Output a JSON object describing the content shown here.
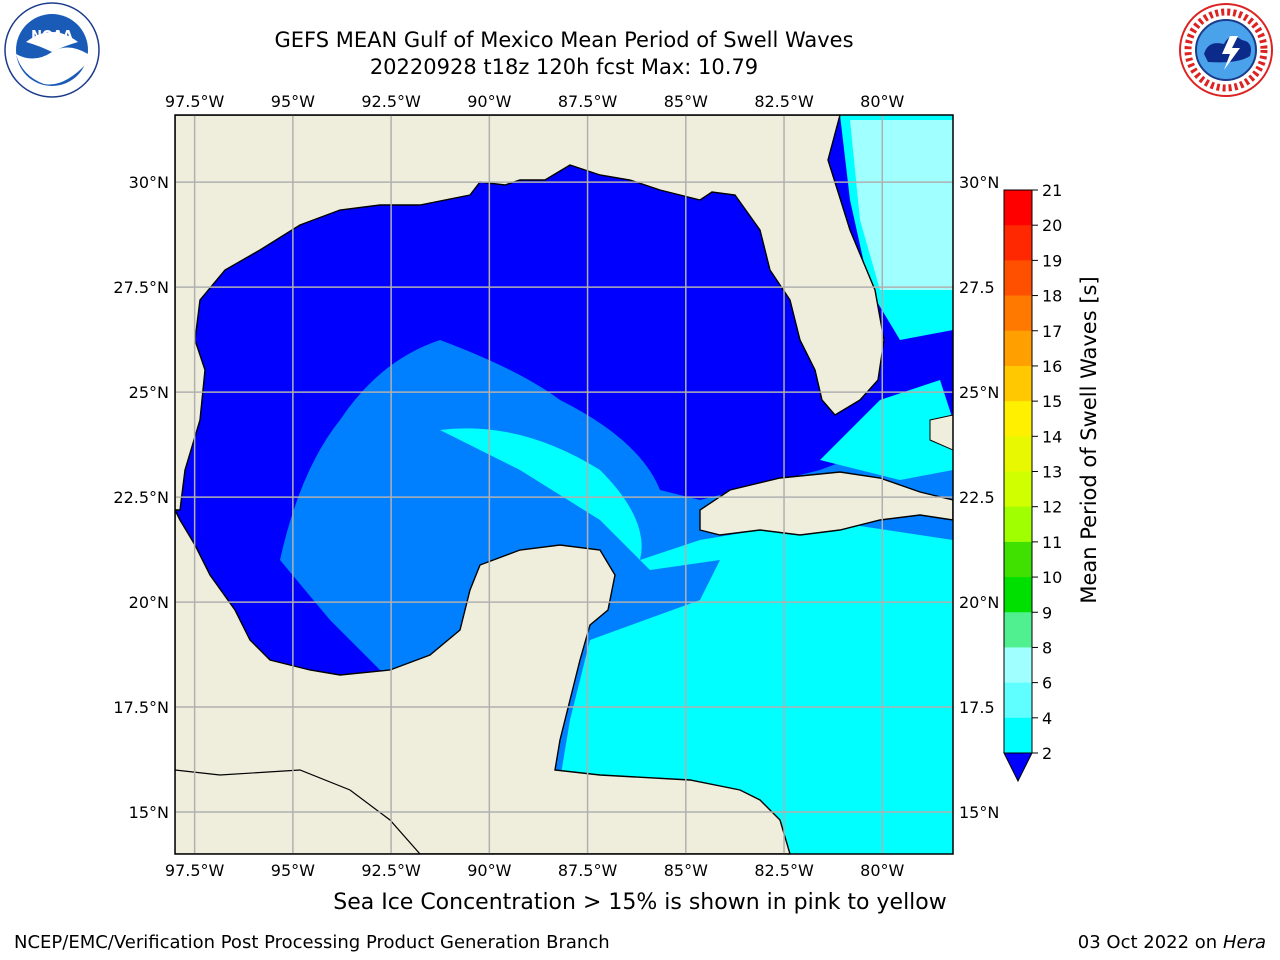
{
  "header": {
    "title_line1": "GEFS MEAN Gulf of Mexico Mean Period of Swell Waves",
    "title_line2": "20220928 t18z 120h fcst   Max: 10.79"
  },
  "logos": {
    "left": {
      "icon": "noaa-logo",
      "text": "NOAA"
    },
    "right": {
      "icon": "national-weather-service-logo",
      "text": "NATIONAL WEATHER SERVICE"
    }
  },
  "map": {
    "lon_labels": [
      "97.5°W",
      "95°W",
      "92.5°W",
      "90°W",
      "87.5°W",
      "85°W",
      "82.5°W",
      "80°W"
    ],
    "lon_values": [
      -97.5,
      -95,
      -92.5,
      -90,
      -87.5,
      -85,
      -82.5,
      -80
    ],
    "lat_labels": [
      "30°N",
      "27.5°N",
      "25°N",
      "22.5°N",
      "20°N",
      "17.5°N",
      "15°N"
    ],
    "lat_labels_right": [
      "30°N",
      "27.5",
      "25°N",
      "22.5",
      "20°N",
      "17.5",
      "15°N"
    ],
    "lat_values": [
      30,
      27.5,
      25,
      22.5,
      20,
      17.5,
      15
    ],
    "lon_range": [
      -98,
      -78.2
    ],
    "lat_range": [
      14,
      31.6
    ],
    "grid": true,
    "colors": {
      "land": "#efeedc",
      "ocean_2_4": "#0000ff",
      "ocean_4_6": "#0080ff",
      "ocean_6_8": "#00ffff",
      "ocean_8_9": "#a0ffff",
      "ocean_9_10": "#44ff88",
      "ocean_10_11": "#00e000",
      "grid": "#b0b0b0"
    }
  },
  "colorbar": {
    "label": "Mean Period of Swell Waves [s]",
    "ticks": [
      "21",
      "20",
      "19",
      "18",
      "17",
      "16",
      "15",
      "14",
      "13",
      "12",
      "11",
      "10",
      "9",
      "8",
      "6",
      "4",
      "2"
    ],
    "colors": [
      "#ff0000",
      "#ff2800",
      "#ff5000",
      "#ff7800",
      "#ffa000",
      "#ffc800",
      "#fff000",
      "#e8f800",
      "#d0ff00",
      "#a0ff00",
      "#40e000",
      "#00e000",
      "#50f090",
      "#a0ffff",
      "#60ffff",
      "#00ffff",
      "#0080ff"
    ],
    "extend_color": "#0000ff"
  },
  "note": "Sea Ice Concentration > 15% is shown in pink to yellow",
  "footer": {
    "left": "NCEP/EMC/Verification Post Processing Product Generation Branch",
    "right_date": "03 Oct 2022 on",
    "right_host": "Hera"
  }
}
